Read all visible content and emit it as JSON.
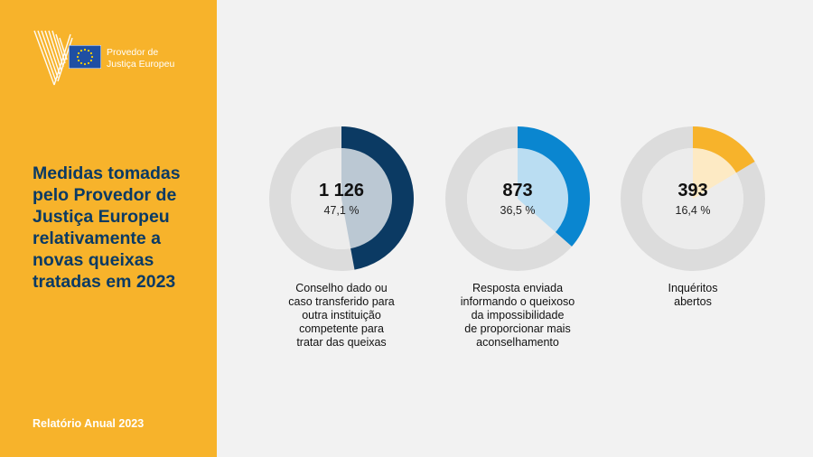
{
  "logo": {
    "line1": "Provedor de",
    "line2": "Justiça Europeu",
    "icon": "ombudsman-logo-icon"
  },
  "title": "Medidas tomadas pelo Provedor de Justiça Europeu relativamente a novas queixas tratadas em 2023",
  "footer": "Relatório Anual 2023",
  "colors": {
    "sidebar": "#f7b32b",
    "title": "#0a3a64",
    "track": "#dcdcdc",
    "series": [
      "#0b3a63",
      "#0a86d0",
      "#f7b32b"
    ]
  },
  "chart_data": {
    "type": "pie",
    "variant": "donut",
    "items": [
      {
        "value": "1 126",
        "percent_label": "47,1 %",
        "share": 47.1,
        "label": "Conselho dado ou\ncaso transferido para\noutra instituição\ncompetente para\ntratar das queixas",
        "color": "#0b3a63"
      },
      {
        "value": "873",
        "percent_label": "36,5 %",
        "share": 36.5,
        "label": "Resposta enviada\ninformando o queixoso\nda impossibilidade\nde proporcionar mais\naconselhamento",
        "color": "#0a86d0"
      },
      {
        "value": "393",
        "percent_label": "16,4 %",
        "share": 16.4,
        "label": "Inquéritos\nabertos",
        "color": "#f7b32b"
      }
    ]
  }
}
